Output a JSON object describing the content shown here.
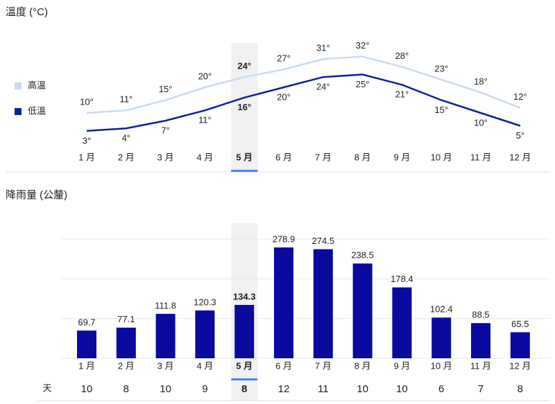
{
  "chart_data": [
    {
      "type": "line",
      "title": "溫度 (°C)",
      "categories": [
        "1 月",
        "2 月",
        "3 月",
        "4 月",
        "5 月",
        "6 月",
        "7 月",
        "8 月",
        "9 月",
        "10 月",
        "11 月",
        "12 月"
      ],
      "highlight": 4,
      "series": [
        {
          "name": "高溫",
          "color": "#c9daf4",
          "values": [
            10,
            11,
            15,
            20,
            24,
            27,
            31,
            32,
            28,
            23,
            18,
            12
          ],
          "value_labels": [
            "10°",
            "11°",
            "15°",
            "20°",
            "24°",
            "27°",
            "31°",
            "32°",
            "28°",
            "23°",
            "18°",
            "12°"
          ]
        },
        {
          "name": "低溫",
          "color": "#0b1f99",
          "values": [
            3,
            4,
            7,
            11,
            16,
            20,
            24,
            25,
            21,
            15,
            10,
            5
          ],
          "value_labels": [
            "3°",
            "4°",
            "7°",
            "11°",
            "16°",
            "20°",
            "24°",
            "25°",
            "21°",
            "15°",
            "10°",
            "5°"
          ]
        }
      ]
    },
    {
      "type": "bar",
      "title": "降雨量 (公釐)",
      "categories": [
        "1 月",
        "2 月",
        "3 月",
        "4 月",
        "5 月",
        "6 月",
        "7 月",
        "8 月",
        "9 月",
        "10 月",
        "11 月",
        "12 月"
      ],
      "values": [
        69.7,
        77.1,
        111.8,
        120.3,
        134.3,
        278.9,
        274.5,
        238.5,
        178.4,
        102.4,
        88.5,
        65.5
      ],
      "color": "#0a0a9e",
      "ylim": [
        0,
        300
      ],
      "yticks": [
        0,
        100,
        200,
        300
      ],
      "grid": true,
      "highlight": 4,
      "days_label": "天",
      "days": [
        10,
        8,
        10,
        9,
        8,
        12,
        11,
        10,
        10,
        6,
        7,
        8
      ]
    }
  ]
}
